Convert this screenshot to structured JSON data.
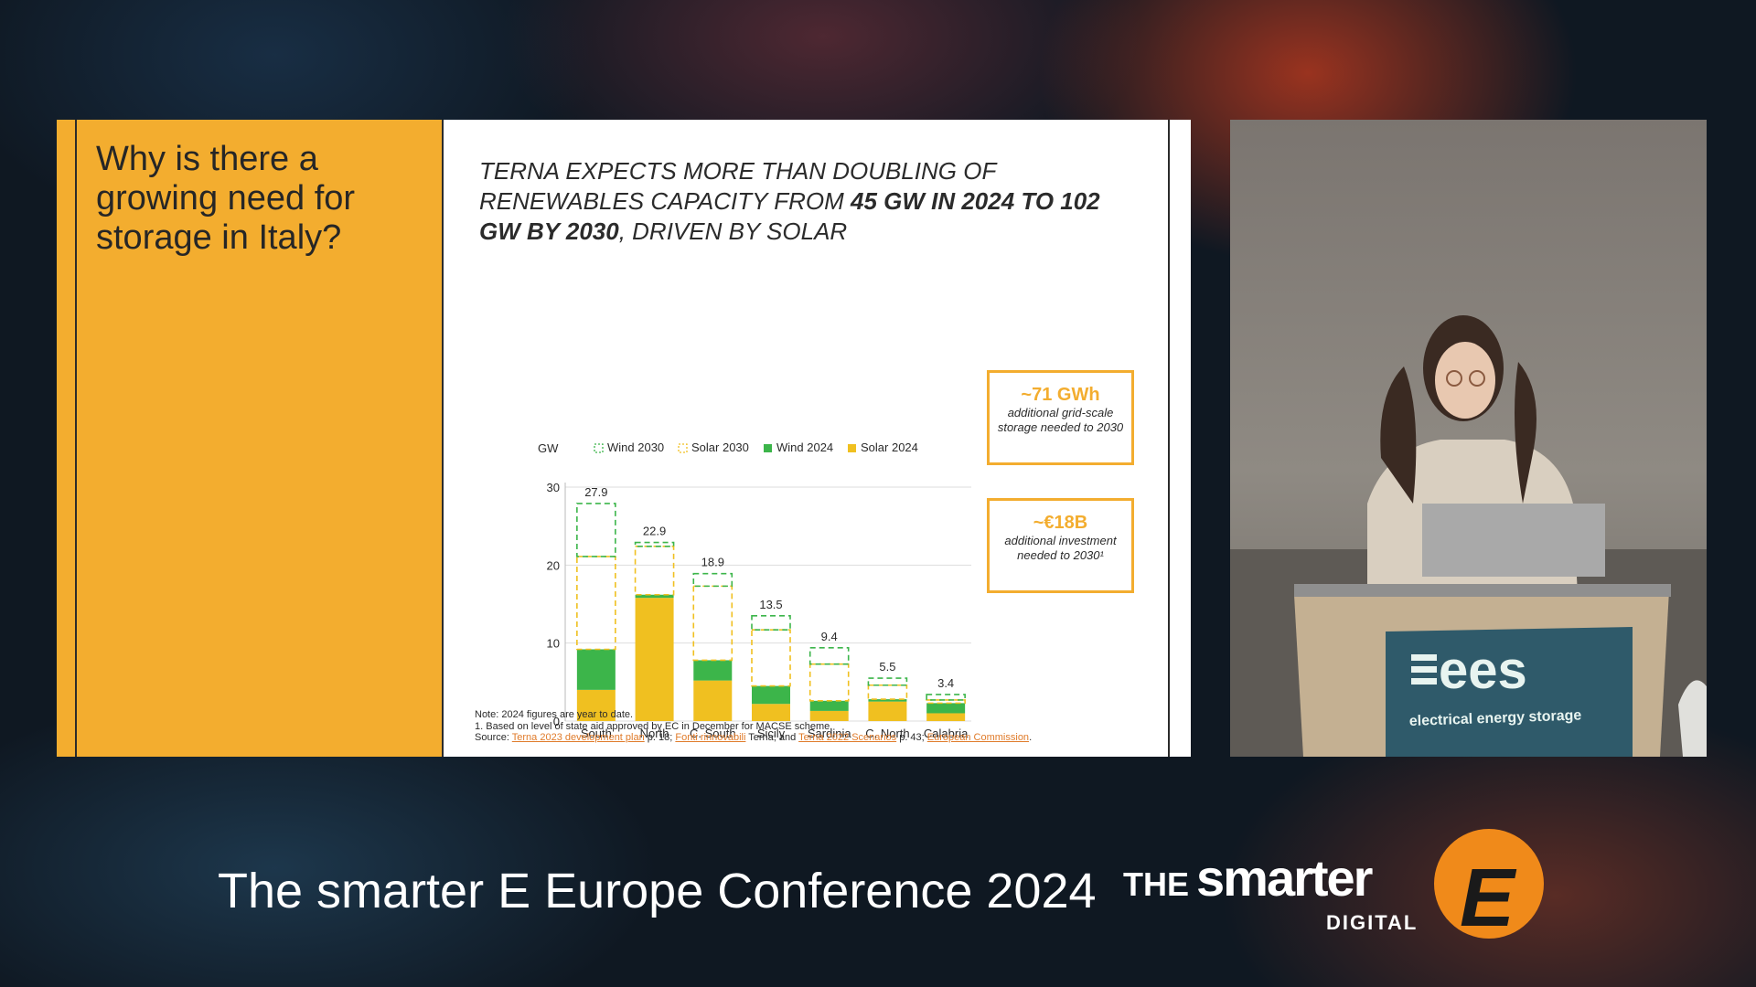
{
  "slide": {
    "question": "Why is there a growing need for storage in Italy?",
    "headline": {
      "part1": "TERNA EXPECTS MORE THAN DOUBLING OF RENEWABLES CAPACITY FROM ",
      "bold1": "45 GW IN 2024 TO 102 GW BY 2030",
      "part2": ", DRIVEN BY SOLAR"
    },
    "callouts": [
      {
        "value": "~71 GWh",
        "text": "additional grid-scale storage needed to 2030"
      },
      {
        "value": "~€18B",
        "text": "additional investment needed to 2030¹"
      }
    ],
    "notes": {
      "line1": "Note: 2024 figures are year to date.",
      "line2": "1. Based on level of state aid approved by EC in December for MACSE scheme.",
      "source_label": "Source: ",
      "src1": "Terna 2023 development plan",
      "src1_tail": " p. 18; ",
      "src2": "Fonti rinnovabili",
      "src2_tail": " Terna; and ",
      "src3": "Terna 2022 Scenarios",
      "src3_tail": " p. 43; ",
      "src4": "European Commission",
      "src4_tail": "."
    }
  },
  "chart_data": {
    "type": "bar",
    "stacked": true,
    "ylabel": "GW",
    "ylim": [
      0,
      30
    ],
    "yticks": [
      0,
      10,
      20,
      30
    ],
    "categories": [
      "South",
      "North",
      "C. South",
      "Sicily",
      "Sardinia",
      "C. North",
      "Calabria"
    ],
    "series": [
      {
        "name": "Solar 2024",
        "values": [
          4.0,
          15.8,
          5.2,
          2.2,
          1.3,
          2.5,
          1.0
        ]
      },
      {
        "name": "Wind 2024",
        "values": [
          5.2,
          0.4,
          2.6,
          2.3,
          1.3,
          0.3,
          1.3
        ]
      },
      {
        "name": "Solar 2030",
        "values": [
          11.9,
          6.2,
          9.5,
          7.2,
          4.7,
          1.8,
          0.4
        ]
      },
      {
        "name": "Wind 2030",
        "values": [
          6.8,
          0.5,
          1.6,
          1.8,
          2.1,
          0.9,
          0.7
        ]
      }
    ],
    "totals": [
      27.9,
      22.9,
      18.9,
      13.5,
      9.4,
      5.5,
      3.4
    ],
    "colors": {
      "Solar 2024": "#f0c020",
      "Wind 2024": "#3cb54a",
      "Solar 2030": "#f0c020",
      "Wind 2030": "#3cb54a"
    },
    "legend": [
      "Wind 2030",
      "Solar 2030",
      "Wind 2024",
      "Solar 2024"
    ],
    "legend_position": "top",
    "grid": true
  },
  "speaker": {
    "podium_logo": "ees",
    "podium_tagline": "electrical energy storage"
  },
  "footer": {
    "title": "The smarter E Europe Conference 2024",
    "brand_the": "THE",
    "brand_smarter": "smarter",
    "brand_digital": "DIGITAL",
    "brand_letter": "E"
  }
}
